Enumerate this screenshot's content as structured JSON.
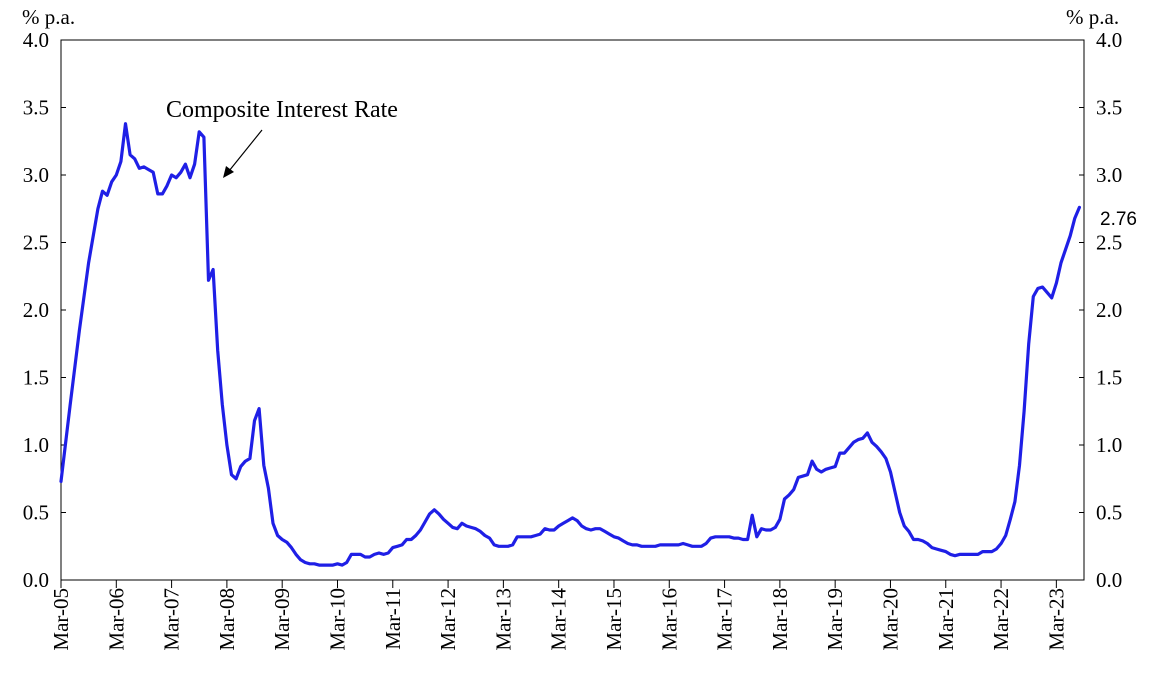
{
  "chart_data": {
    "type": "line",
    "title": "",
    "xlabel": "",
    "ylabel": "",
    "y_unit_left": "% p.a.",
    "y_unit_right": "% p.a.",
    "ylim": [
      0,
      4
    ],
    "y_ticks": [
      "0.0",
      "0.5",
      "1.0",
      "1.5",
      "2.0",
      "2.5",
      "3.0",
      "3.5",
      "4.0"
    ],
    "x_range": [
      "2005-03",
      "2023-09"
    ],
    "x_ticks": [
      "Mar-05",
      "Mar-06",
      "Mar-07",
      "Mar-08",
      "Mar-09",
      "Mar-10",
      "Mar-11",
      "Mar-12",
      "Mar-13",
      "Mar-14",
      "Mar-15",
      "Mar-16",
      "Mar-17",
      "Mar-18",
      "Mar-19",
      "Mar-20",
      "Mar-21",
      "Mar-22",
      "Mar-23"
    ],
    "grid": false,
    "annotation": "Composite Interest Rate",
    "end_label": "2.76",
    "series": [
      {
        "color": "#1f1fe6",
        "points": [
          [
            "2005-03",
            0.73
          ],
          [
            "2005-05",
            1.3
          ],
          [
            "2005-07",
            1.85
          ],
          [
            "2005-09",
            2.35
          ],
          [
            "2005-11",
            2.75
          ],
          [
            "2005-12",
            2.88
          ],
          [
            "2006-01",
            2.85
          ],
          [
            "2006-02",
            2.95
          ],
          [
            "2006-03",
            3.0
          ],
          [
            "2006-04",
            3.1
          ],
          [
            "2006-05",
            3.38
          ],
          [
            "2006-06",
            3.15
          ],
          [
            "2006-07",
            3.12
          ],
          [
            "2006-08",
            3.05
          ],
          [
            "2006-09",
            3.06
          ],
          [
            "2006-10",
            3.04
          ],
          [
            "2006-11",
            3.02
          ],
          [
            "2006-12",
            2.86
          ],
          [
            "2007-01",
            2.86
          ],
          [
            "2007-02",
            2.92
          ],
          [
            "2007-03",
            3.0
          ],
          [
            "2007-04",
            2.98
          ],
          [
            "2007-05",
            3.02
          ],
          [
            "2007-06",
            3.08
          ],
          [
            "2007-07",
            2.98
          ],
          [
            "2007-08",
            3.08
          ],
          [
            "2007-09",
            3.32
          ],
          [
            "2007-10",
            3.28
          ],
          [
            "2007-11",
            2.22
          ],
          [
            "2007-12",
            2.3
          ],
          [
            "2008-01",
            1.7
          ],
          [
            "2008-02",
            1.3
          ],
          [
            "2008-03",
            1.0
          ],
          [
            "2008-04",
            0.78
          ],
          [
            "2008-05",
            0.75
          ],
          [
            "2008-06",
            0.84
          ],
          [
            "2008-07",
            0.88
          ],
          [
            "2008-08",
            0.9
          ],
          [
            "2008-09",
            1.18
          ],
          [
            "2008-10",
            1.27
          ],
          [
            "2008-11",
            0.85
          ],
          [
            "2008-12",
            0.68
          ],
          [
            "2009-01",
            0.42
          ],
          [
            "2009-02",
            0.33
          ],
          [
            "2009-03",
            0.3
          ],
          [
            "2009-04",
            0.28
          ],
          [
            "2009-05",
            0.24
          ],
          [
            "2009-06",
            0.19
          ],
          [
            "2009-07",
            0.15
          ],
          [
            "2009-08",
            0.13
          ],
          [
            "2009-09",
            0.12
          ],
          [
            "2009-10",
            0.12
          ],
          [
            "2009-11",
            0.11
          ],
          [
            "2009-12",
            0.11
          ],
          [
            "2010-01",
            0.11
          ],
          [
            "2010-02",
            0.11
          ],
          [
            "2010-03",
            0.12
          ],
          [
            "2010-04",
            0.11
          ],
          [
            "2010-05",
            0.13
          ],
          [
            "2010-06",
            0.19
          ],
          [
            "2010-07",
            0.19
          ],
          [
            "2010-08",
            0.19
          ],
          [
            "2010-09",
            0.17
          ],
          [
            "2010-10",
            0.17
          ],
          [
            "2010-11",
            0.19
          ],
          [
            "2010-12",
            0.2
          ],
          [
            "2011-01",
            0.19
          ],
          [
            "2011-02",
            0.2
          ],
          [
            "2011-03",
            0.24
          ],
          [
            "2011-04",
            0.25
          ],
          [
            "2011-05",
            0.26
          ],
          [
            "2011-06",
            0.3
          ],
          [
            "2011-07",
            0.3
          ],
          [
            "2011-08",
            0.33
          ],
          [
            "2011-09",
            0.37
          ],
          [
            "2011-10",
            0.43
          ],
          [
            "2011-11",
            0.49
          ],
          [
            "2011-12",
            0.52
          ],
          [
            "2012-01",
            0.49
          ],
          [
            "2012-02",
            0.45
          ],
          [
            "2012-03",
            0.42
          ],
          [
            "2012-04",
            0.39
          ],
          [
            "2012-05",
            0.38
          ],
          [
            "2012-06",
            0.42
          ],
          [
            "2012-07",
            0.4
          ],
          [
            "2012-08",
            0.39
          ],
          [
            "2012-09",
            0.38
          ],
          [
            "2012-10",
            0.36
          ],
          [
            "2012-11",
            0.33
          ],
          [
            "2012-12",
            0.31
          ],
          [
            "2013-01",
            0.26
          ],
          [
            "2013-02",
            0.25
          ],
          [
            "2013-03",
            0.25
          ],
          [
            "2013-04",
            0.25
          ],
          [
            "2013-05",
            0.26
          ],
          [
            "2013-06",
            0.32
          ],
          [
            "2013-07",
            0.32
          ],
          [
            "2013-08",
            0.32
          ],
          [
            "2013-09",
            0.32
          ],
          [
            "2013-10",
            0.33
          ],
          [
            "2013-11",
            0.34
          ],
          [
            "2013-12",
            0.38
          ],
          [
            "2014-01",
            0.37
          ],
          [
            "2014-02",
            0.37
          ],
          [
            "2014-03",
            0.4
          ],
          [
            "2014-04",
            0.42
          ],
          [
            "2014-05",
            0.44
          ],
          [
            "2014-06",
            0.46
          ],
          [
            "2014-07",
            0.44
          ],
          [
            "2014-08",
            0.4
          ],
          [
            "2014-09",
            0.38
          ],
          [
            "2014-10",
            0.37
          ],
          [
            "2014-11",
            0.38
          ],
          [
            "2014-12",
            0.38
          ],
          [
            "2015-01",
            0.36
          ],
          [
            "2015-02",
            0.34
          ],
          [
            "2015-03",
            0.32
          ],
          [
            "2015-04",
            0.31
          ],
          [
            "2015-05",
            0.29
          ],
          [
            "2015-06",
            0.27
          ],
          [
            "2015-07",
            0.26
          ],
          [
            "2015-08",
            0.26
          ],
          [
            "2015-09",
            0.25
          ],
          [
            "2015-10",
            0.25
          ],
          [
            "2015-11",
            0.25
          ],
          [
            "2015-12",
            0.25
          ],
          [
            "2016-01",
            0.26
          ],
          [
            "2016-02",
            0.26
          ],
          [
            "2016-03",
            0.26
          ],
          [
            "2016-04",
            0.26
          ],
          [
            "2016-05",
            0.26
          ],
          [
            "2016-06",
            0.27
          ],
          [
            "2016-07",
            0.26
          ],
          [
            "2016-08",
            0.25
          ],
          [
            "2016-09",
            0.25
          ],
          [
            "2016-10",
            0.25
          ],
          [
            "2016-11",
            0.27
          ],
          [
            "2016-12",
            0.31
          ],
          [
            "2017-01",
            0.32
          ],
          [
            "2017-02",
            0.32
          ],
          [
            "2017-03",
            0.32
          ],
          [
            "2017-04",
            0.32
          ],
          [
            "2017-05",
            0.31
          ],
          [
            "2017-06",
            0.31
          ],
          [
            "2017-07",
            0.3
          ],
          [
            "2017-08",
            0.3
          ],
          [
            "2017-09",
            0.48
          ],
          [
            "2017-10",
            0.32
          ],
          [
            "2017-11",
            0.38
          ],
          [
            "2017-12",
            0.37
          ],
          [
            "2018-01",
            0.37
          ],
          [
            "2018-02",
            0.39
          ],
          [
            "2018-03",
            0.45
          ],
          [
            "2018-04",
            0.6
          ],
          [
            "2018-05",
            0.63
          ],
          [
            "2018-06",
            0.67
          ],
          [
            "2018-07",
            0.76
          ],
          [
            "2018-08",
            0.77
          ],
          [
            "2018-09",
            0.78
          ],
          [
            "2018-10",
            0.88
          ],
          [
            "2018-11",
            0.82
          ],
          [
            "2018-12",
            0.8
          ],
          [
            "2019-01",
            0.82
          ],
          [
            "2019-02",
            0.83
          ],
          [
            "2019-03",
            0.84
          ],
          [
            "2019-04",
            0.94
          ],
          [
            "2019-05",
            0.94
          ],
          [
            "2019-06",
            0.98
          ],
          [
            "2019-07",
            1.02
          ],
          [
            "2019-08",
            1.04
          ],
          [
            "2019-09",
            1.05
          ],
          [
            "2019-10",
            1.09
          ],
          [
            "2019-11",
            1.02
          ],
          [
            "2019-12",
            0.99
          ],
          [
            "2020-01",
            0.95
          ],
          [
            "2020-02",
            0.9
          ],
          [
            "2020-03",
            0.8
          ],
          [
            "2020-04",
            0.65
          ],
          [
            "2020-05",
            0.5
          ],
          [
            "2020-06",
            0.4
          ],
          [
            "2020-07",
            0.36
          ],
          [
            "2020-08",
            0.3
          ],
          [
            "2020-09",
            0.3
          ],
          [
            "2020-10",
            0.29
          ],
          [
            "2020-11",
            0.27
          ],
          [
            "2020-12",
            0.24
          ],
          [
            "2021-01",
            0.23
          ],
          [
            "2021-02",
            0.22
          ],
          [
            "2021-03",
            0.21
          ],
          [
            "2021-04",
            0.19
          ],
          [
            "2021-05",
            0.18
          ],
          [
            "2021-06",
            0.19
          ],
          [
            "2021-07",
            0.19
          ],
          [
            "2021-08",
            0.19
          ],
          [
            "2021-09",
            0.19
          ],
          [
            "2021-10",
            0.19
          ],
          [
            "2021-11",
            0.21
          ],
          [
            "2021-12",
            0.21
          ],
          [
            "2022-01",
            0.21
          ],
          [
            "2022-02",
            0.23
          ],
          [
            "2022-03",
            0.27
          ],
          [
            "2022-04",
            0.33
          ],
          [
            "2022-05",
            0.45
          ],
          [
            "2022-06",
            0.58
          ],
          [
            "2022-07",
            0.85
          ],
          [
            "2022-08",
            1.25
          ],
          [
            "2022-09",
            1.75
          ],
          [
            "2022-10",
            2.1
          ],
          [
            "2022-11",
            2.16
          ],
          [
            "2022-12",
            2.17
          ],
          [
            "2023-01",
            2.13
          ],
          [
            "2023-02",
            2.09
          ],
          [
            "2023-03",
            2.2
          ],
          [
            "2023-04",
            2.35
          ],
          [
            "2023-05",
            2.45
          ],
          [
            "2023-06",
            2.55
          ],
          [
            "2023-07",
            2.68
          ],
          [
            "2023-08",
            2.76
          ]
        ]
      }
    ]
  }
}
